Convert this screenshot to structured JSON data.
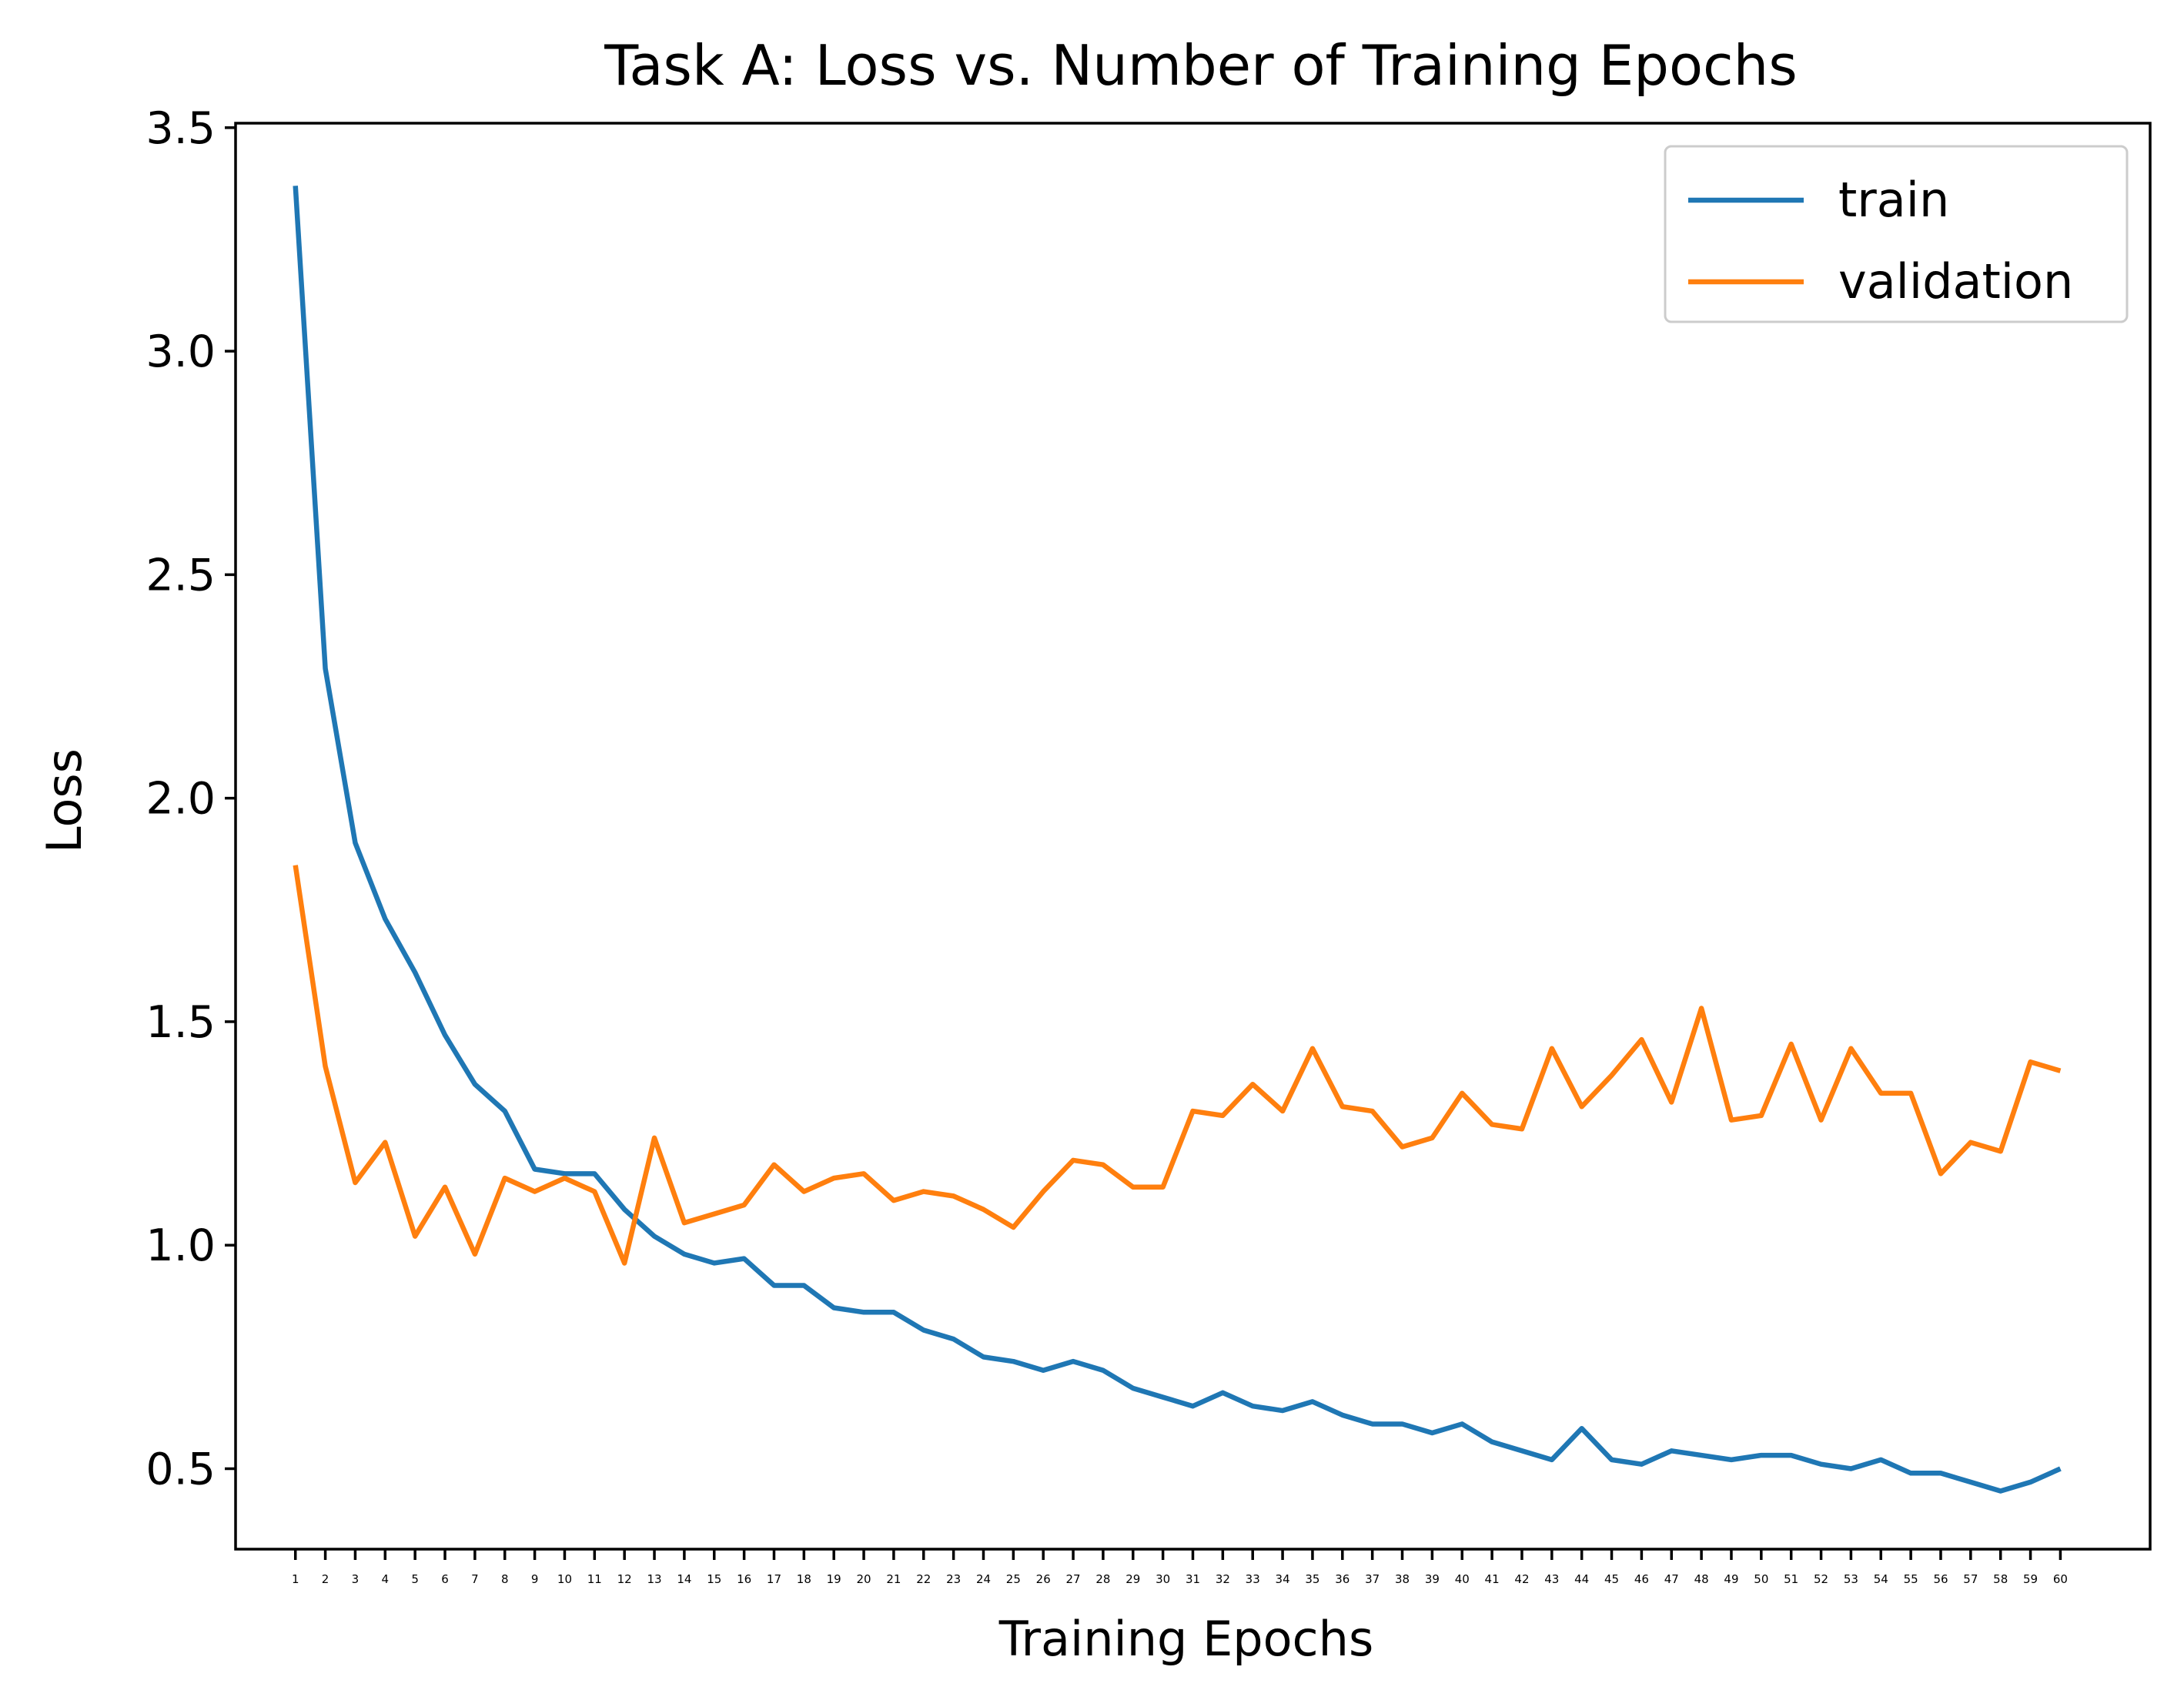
{
  "chart_data": {
    "type": "line",
    "title": "Task A: Loss vs. Number of Training Epochs",
    "xlabel": "Training Epochs",
    "ylabel": "Loss",
    "x": [
      1,
      2,
      3,
      4,
      5,
      6,
      7,
      8,
      9,
      10,
      11,
      12,
      13,
      14,
      15,
      16,
      17,
      18,
      19,
      20,
      21,
      22,
      23,
      24,
      25,
      26,
      27,
      28,
      29,
      30,
      31,
      32,
      33,
      34,
      35,
      36,
      37,
      38,
      39,
      40,
      41,
      42,
      43,
      44,
      45,
      46,
      47,
      48,
      49,
      50,
      51,
      52,
      53,
      54,
      55,
      56,
      57,
      58,
      59,
      60
    ],
    "xtick_labels": [
      "1",
      "2",
      "3",
      "4",
      "5",
      "6",
      "7",
      "8",
      "9",
      "10",
      "11",
      "12",
      "13",
      "14",
      "15",
      "16",
      "17",
      "18",
      "19",
      "20",
      "21",
      "22",
      "23",
      "24",
      "25",
      "26",
      "27",
      "28",
      "29",
      "30",
      "31",
      "32",
      "33",
      "34",
      "35",
      "36",
      "37",
      "38",
      "39",
      "40",
      "41",
      "42",
      "43",
      "44",
      "45",
      "46",
      "47",
      "48",
      "49",
      "50",
      "51",
      "52",
      "53",
      "54",
      "55",
      "56",
      "57",
      "58",
      "59",
      "60"
    ],
    "yticks": [
      0.5,
      1.0,
      1.5,
      2.0,
      2.5,
      3.0,
      3.5
    ],
    "ytick_labels": [
      "0.5",
      "1.0",
      "1.5",
      "2.0",
      "2.5",
      "3.0",
      "3.5"
    ],
    "xlim": [
      -1.0,
      63.0
    ],
    "ylim": [
      0.32,
      3.51
    ],
    "grid": false,
    "legend_position": "top-right",
    "series": [
      {
        "name": "train",
        "color": "#1f77b4",
        "values": [
          3.37,
          2.29,
          1.9,
          1.73,
          1.61,
          1.47,
          1.36,
          1.3,
          1.17,
          1.16,
          1.16,
          1.08,
          1.02,
          0.98,
          0.96,
          0.97,
          0.91,
          0.91,
          0.86,
          0.85,
          0.85,
          0.81,
          0.79,
          0.75,
          0.74,
          0.72,
          0.74,
          0.72,
          0.68,
          0.66,
          0.64,
          0.67,
          0.64,
          0.63,
          0.65,
          0.62,
          0.6,
          0.6,
          0.58,
          0.6,
          0.56,
          0.54,
          0.52,
          0.59,
          0.52,
          0.51,
          0.54,
          0.53,
          0.52,
          0.53,
          0.53,
          0.51,
          0.5,
          0.52,
          0.49,
          0.49,
          0.47,
          0.45,
          0.47,
          0.5
        ]
      },
      {
        "name": "validation",
        "color": "#ff7f0e",
        "values": [
          1.85,
          1.4,
          1.14,
          1.23,
          1.02,
          1.13,
          0.98,
          1.15,
          1.12,
          1.15,
          1.12,
          0.96,
          1.24,
          1.05,
          1.07,
          1.09,
          1.18,
          1.12,
          1.15,
          1.16,
          1.1,
          1.12,
          1.11,
          1.08,
          1.04,
          1.12,
          1.19,
          1.18,
          1.13,
          1.13,
          1.3,
          1.29,
          1.36,
          1.3,
          1.44,
          1.31,
          1.3,
          1.22,
          1.24,
          1.34,
          1.27,
          1.26,
          1.44,
          1.31,
          1.38,
          1.46,
          1.32,
          1.53,
          1.28,
          1.29,
          1.45,
          1.28,
          1.44,
          1.34,
          1.34,
          1.16,
          1.23,
          1.21,
          1.41,
          1.39
        ]
      }
    ]
  }
}
